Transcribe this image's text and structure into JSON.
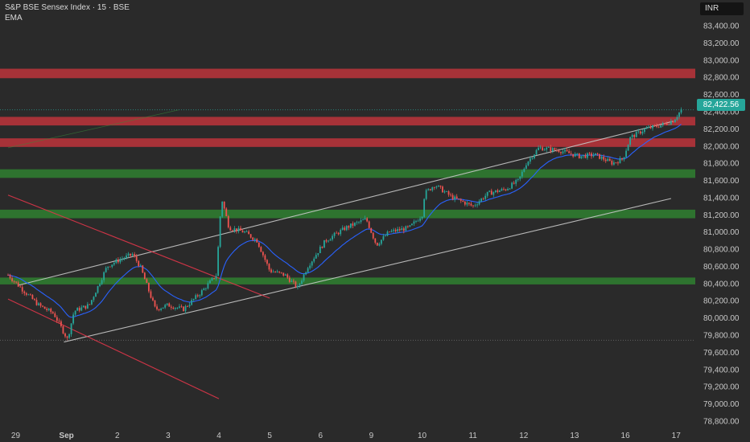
{
  "header": {
    "title": "S&P BSE Sensex Index · 15 · BSE",
    "indicator": "EMA",
    "currency": "INR"
  },
  "last_price_label": "82,422.56",
  "colors": {
    "background": "#2a2a2a",
    "bull": "#26a69a",
    "bear": "#ef5350",
    "ema": "#2962ff",
    "resistance_zone": "#b2333a",
    "support_zone": "#2f7a30",
    "channel_line": "#c8c8c8",
    "down_channel": "#e0364a"
  },
  "chart_data": {
    "type": "candlestick",
    "title": "S&P BSE Sensex Index · 15 · BSE",
    "interval": "15",
    "exchange": "BSE",
    "currency": "INR",
    "y_ticks": [
      "83,400.00",
      "83,200.00",
      "83,000.00",
      "82,800.00",
      "82,600.00",
      "82,400.00",
      "82,200.00",
      "82,000.00",
      "81,800.00",
      "81,600.00",
      "81,400.00",
      "81,200.00",
      "81,000.00",
      "80,800.00",
      "80,600.00",
      "80,400.00",
      "80,200.00",
      "80,000.00",
      "79,800.00",
      "79,600.00",
      "79,400.00",
      "79,200.00",
      "79,000.00",
      "78,800.00"
    ],
    "y_tick_values": [
      83400,
      83200,
      83000,
      82800,
      82600,
      82400,
      82200,
      82000,
      81800,
      81600,
      81400,
      81200,
      81000,
      80800,
      80600,
      80400,
      80200,
      80000,
      79800,
      79600,
      79400,
      79200,
      79000,
      78800
    ],
    "ylim": [
      78720,
      83480
    ],
    "x_ticks": [
      "29",
      "Sep",
      "2",
      "3",
      "4",
      "5",
      "6",
      "9",
      "10",
      "11",
      "12",
      "13",
      "16",
      "17"
    ],
    "x_tick_session_index": [
      0,
      1,
      2,
      3,
      4,
      5,
      6,
      7,
      8,
      9,
      10,
      11,
      12,
      13
    ],
    "x_range": [
      -0.15,
      13.25
    ],
    "session_path": [
      {
        "x": -0.15,
        "price": 80500
      },
      {
        "x": 0.1,
        "price": 80350
      },
      {
        "x": 0.45,
        "price": 80150
      },
      {
        "x": 0.75,
        "price": 80050
      },
      {
        "x": 1.02,
        "price": 79750
      },
      {
        "x": 1.15,
        "price": 80080
      },
      {
        "x": 1.45,
        "price": 80150
      },
      {
        "x": 1.8,
        "price": 80600
      },
      {
        "x": 2.05,
        "price": 80680
      },
      {
        "x": 2.3,
        "price": 80740
      },
      {
        "x": 2.45,
        "price": 80600
      },
      {
        "x": 2.75,
        "price": 80100
      },
      {
        "x": 3.0,
        "price": 80150
      },
      {
        "x": 3.3,
        "price": 80100
      },
      {
        "x": 3.65,
        "price": 80300
      },
      {
        "x": 3.95,
        "price": 80500
      },
      {
        "x": 4.05,
        "price": 81400
      },
      {
        "x": 4.2,
        "price": 81050
      },
      {
        "x": 4.5,
        "price": 81000
      },
      {
        "x": 4.75,
        "price": 80900
      },
      {
        "x": 5.0,
        "price": 80550
      },
      {
        "x": 5.3,
        "price": 80500
      },
      {
        "x": 5.55,
        "price": 80350
      },
      {
        "x": 5.75,
        "price": 80600
      },
      {
        "x": 6.1,
        "price": 80900
      },
      {
        "x": 6.5,
        "price": 81050
      },
      {
        "x": 6.9,
        "price": 81150
      },
      {
        "x": 7.1,
        "price": 80850
      },
      {
        "x": 7.35,
        "price": 81000
      },
      {
        "x": 7.75,
        "price": 81050
      },
      {
        "x": 8.0,
        "price": 81200
      },
      {
        "x": 8.05,
        "price": 81450
      },
      {
        "x": 8.25,
        "price": 81550
      },
      {
        "x": 8.6,
        "price": 81400
      },
      {
        "x": 9.0,
        "price": 81300
      },
      {
        "x": 9.3,
        "price": 81450
      },
      {
        "x": 9.65,
        "price": 81500
      },
      {
        "x": 9.9,
        "price": 81600
      },
      {
        "x": 10.05,
        "price": 81800
      },
      {
        "x": 10.3,
        "price": 81980
      },
      {
        "x": 10.7,
        "price": 81950
      },
      {
        "x": 11.1,
        "price": 81880
      },
      {
        "x": 11.4,
        "price": 81900
      },
      {
        "x": 11.75,
        "price": 81800
      },
      {
        "x": 11.95,
        "price": 81850
      },
      {
        "x": 12.1,
        "price": 82100
      },
      {
        "x": 12.4,
        "price": 82200
      },
      {
        "x": 12.75,
        "price": 82250
      },
      {
        "x": 12.95,
        "price": 82300
      },
      {
        "x": 13.1,
        "price": 82422
      }
    ],
    "last_price": 82422.56,
    "zones": [
      {
        "kind": "resistance",
        "from": 82790,
        "to": 82900
      },
      {
        "kind": "resistance",
        "from": 82240,
        "to": 82340
      },
      {
        "kind": "resistance",
        "from": 81990,
        "to": 82090
      },
      {
        "kind": "support",
        "from": 81630,
        "to": 81730
      },
      {
        "kind": "support",
        "from": 81160,
        "to": 81260
      },
      {
        "kind": "support",
        "from": 80390,
        "to": 80470
      }
    ],
    "trendlines": [
      {
        "kind": "channel-upper",
        "from": {
          "x": 0.05,
          "price": 80380
        },
        "to": {
          "x": 12.95,
          "price": 82290
        }
      },
      {
        "kind": "channel-lower",
        "from": {
          "x": 0.95,
          "price": 79720
        },
        "to": {
          "x": 12.9,
          "price": 81390
        }
      },
      {
        "kind": "down-channel-upper",
        "from": {
          "x": -0.15,
          "price": 81430
        },
        "to": {
          "x": 5.0,
          "price": 80230
        }
      },
      {
        "kind": "down-channel-lower",
        "from": {
          "x": -0.15,
          "price": 80220
        },
        "to": {
          "x": 4.0,
          "price": 79060
        }
      }
    ],
    "grid": false,
    "legend": "none"
  }
}
